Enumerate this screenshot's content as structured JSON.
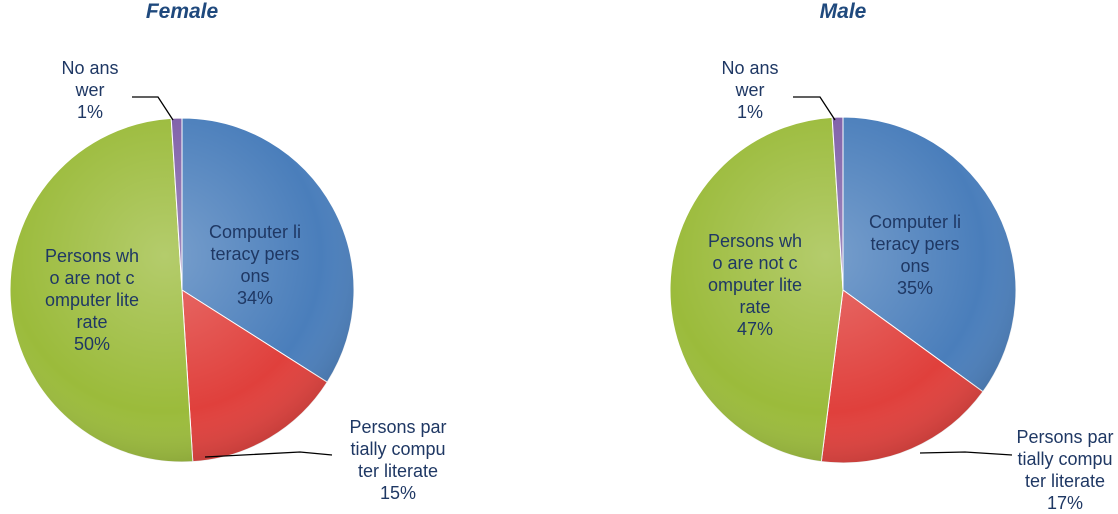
{
  "chart_data": [
    {
      "type": "pie",
      "title": "Female",
      "categories": [
        "Computer literacy persons",
        "Persons partially computer literate",
        "Persons who are not computer literate",
        "No answer"
      ],
      "values": [
        34,
        15,
        50,
        1
      ],
      "value_labels": [
        "34%",
        "15%",
        "50%",
        "1%"
      ],
      "colors": [
        "#4a7ebb",
        "#e0403c",
        "#9bbb3b",
        "#7e5fa8"
      ]
    },
    {
      "type": "pie",
      "title": "Male",
      "categories": [
        "Computer literacy persons",
        "Persons partially computer literate",
        "Persons who are not computer literate",
        "No answer"
      ],
      "values": [
        35,
        17,
        47,
        1
      ],
      "value_labels": [
        "35%",
        "17%",
        "47%",
        "1%"
      ],
      "colors": [
        "#4a7ebb",
        "#e0403c",
        "#9bbb3b",
        "#7e5fa8"
      ]
    }
  ]
}
